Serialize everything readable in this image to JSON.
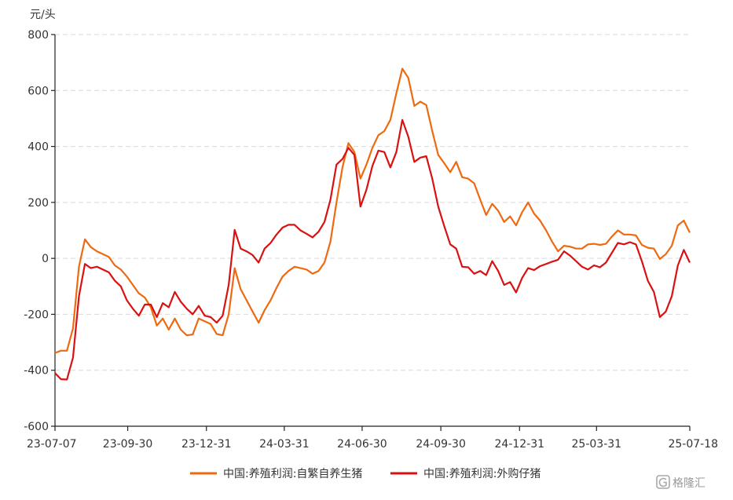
{
  "chart_data": {
    "type": "line",
    "ylabel": "元/头",
    "ylim": [
      -600,
      800
    ],
    "yticks": [
      -600,
      -400,
      -200,
      0,
      200,
      400,
      600,
      800
    ],
    "xlim": [
      "2023-07-07",
      "2025-07-18"
    ],
    "xticks": [
      {
        "date": "2023-07-07",
        "label": "23-07-07"
      },
      {
        "date": "2023-09-30",
        "label": "23-09-30"
      },
      {
        "date": "2023-12-31",
        "label": "23-12-31"
      },
      {
        "date": "2024-03-31",
        "label": "24-03-31"
      },
      {
        "date": "2024-06-30",
        "label": "24-06-30"
      },
      {
        "date": "2024-09-30",
        "label": "24-09-30"
      },
      {
        "date": "2024-12-31",
        "label": "24-12-31"
      },
      {
        "date": "2025-03-31",
        "label": "25-03-31"
      },
      {
        "date": "2025-07-18",
        "label": "25-07-18"
      }
    ],
    "grid": true,
    "legend": "bottom",
    "series": [
      {
        "name": "中国:养殖利润:自繁自养生猪",
        "color": "#ee6a10",
        "points": [
          [
            "2023-07-07",
            -338
          ],
          [
            "2023-07-14",
            -330
          ],
          [
            "2023-07-21",
            -330
          ],
          [
            "2023-07-28",
            -250
          ],
          [
            "2023-08-04",
            -30
          ],
          [
            "2023-08-11",
            68
          ],
          [
            "2023-08-18",
            40
          ],
          [
            "2023-08-25",
            25
          ],
          [
            "2023-09-01",
            15
          ],
          [
            "2023-09-08",
            5
          ],
          [
            "2023-09-15",
            -25
          ],
          [
            "2023-09-22",
            -40
          ],
          [
            "2023-09-29",
            -65
          ],
          [
            "2023-10-06",
            -95
          ],
          [
            "2023-10-13",
            -125
          ],
          [
            "2023-10-20",
            -140
          ],
          [
            "2023-10-27",
            -175
          ],
          [
            "2023-11-03",
            -240
          ],
          [
            "2023-11-10",
            -215
          ],
          [
            "2023-11-17",
            -255
          ],
          [
            "2023-11-24",
            -215
          ],
          [
            "2023-12-01",
            -255
          ],
          [
            "2023-12-08",
            -275
          ],
          [
            "2023-12-15",
            -272
          ],
          [
            "2023-12-22",
            -215
          ],
          [
            "2023-12-29",
            -225
          ],
          [
            "2024-01-05",
            -235
          ],
          [
            "2024-01-12",
            -270
          ],
          [
            "2024-01-19",
            -275
          ],
          [
            "2024-01-26",
            -200
          ],
          [
            "2024-02-02",
            -35
          ],
          [
            "2024-02-09",
            -110
          ],
          [
            "2024-02-16",
            -150
          ],
          [
            "2024-02-23",
            -190
          ],
          [
            "2024-03-01",
            -230
          ],
          [
            "2024-03-08",
            -185
          ],
          [
            "2024-03-15",
            -150
          ],
          [
            "2024-03-22",
            -105
          ],
          [
            "2024-03-29",
            -65
          ],
          [
            "2024-04-05",
            -45
          ],
          [
            "2024-04-12",
            -30
          ],
          [
            "2024-04-19",
            -35
          ],
          [
            "2024-04-26",
            -40
          ],
          [
            "2024-05-03",
            -55
          ],
          [
            "2024-05-10",
            -45
          ],
          [
            "2024-05-17",
            -15
          ],
          [
            "2024-05-24",
            60
          ],
          [
            "2024-05-31",
            200
          ],
          [
            "2024-06-07",
            325
          ],
          [
            "2024-06-14",
            412
          ],
          [
            "2024-06-21",
            380
          ],
          [
            "2024-06-28",
            285
          ],
          [
            "2024-07-05",
            335
          ],
          [
            "2024-07-12",
            395
          ],
          [
            "2024-07-19",
            440
          ],
          [
            "2024-07-26",
            455
          ],
          [
            "2024-08-02",
            495
          ],
          [
            "2024-08-09",
            590
          ],
          [
            "2024-08-16",
            678
          ],
          [
            "2024-08-23",
            645
          ],
          [
            "2024-08-30",
            545
          ],
          [
            "2024-09-06",
            560
          ],
          [
            "2024-09-13",
            548
          ],
          [
            "2024-09-20",
            455
          ],
          [
            "2024-09-27",
            370
          ],
          [
            "2024-10-04",
            340
          ],
          [
            "2024-10-11",
            308
          ],
          [
            "2024-10-18",
            345
          ],
          [
            "2024-10-25",
            290
          ],
          [
            "2024-11-01",
            285
          ],
          [
            "2024-11-08",
            268
          ],
          [
            "2024-11-15",
            210
          ],
          [
            "2024-11-22",
            155
          ],
          [
            "2024-11-29",
            195
          ],
          [
            "2024-12-06",
            170
          ],
          [
            "2024-12-13",
            130
          ],
          [
            "2024-12-20",
            150
          ],
          [
            "2024-12-27",
            118
          ],
          [
            "2025-01-03",
            165
          ],
          [
            "2025-01-10",
            200
          ],
          [
            "2025-01-17",
            160
          ],
          [
            "2025-01-24",
            135
          ],
          [
            "2025-01-31",
            100
          ],
          [
            "2025-02-07",
            60
          ],
          [
            "2025-02-14",
            25
          ],
          [
            "2025-02-21",
            45
          ],
          [
            "2025-02-28",
            42
          ],
          [
            "2025-03-07",
            35
          ],
          [
            "2025-03-14",
            35
          ],
          [
            "2025-03-21",
            50
          ],
          [
            "2025-03-28",
            52
          ],
          [
            "2025-04-04",
            48
          ],
          [
            "2025-04-11",
            52
          ],
          [
            "2025-04-18",
            78
          ],
          [
            "2025-04-25",
            100
          ],
          [
            "2025-05-02",
            85
          ],
          [
            "2025-05-09",
            85
          ],
          [
            "2025-05-16",
            82
          ],
          [
            "2025-05-23",
            48
          ],
          [
            "2025-05-30",
            38
          ],
          [
            "2025-06-06",
            35
          ],
          [
            "2025-06-13",
            -2
          ],
          [
            "2025-06-20",
            15
          ],
          [
            "2025-06-27",
            45
          ],
          [
            "2025-07-04",
            118
          ],
          [
            "2025-07-11",
            135
          ],
          [
            "2025-07-18",
            92
          ]
        ]
      },
      {
        "name": "中国:养殖利润:外购仔猪",
        "color": "#d81212",
        "points": [
          [
            "2023-07-07",
            -410
          ],
          [
            "2023-07-14",
            -432
          ],
          [
            "2023-07-21",
            -433
          ],
          [
            "2023-07-28",
            -355
          ],
          [
            "2023-08-04",
            -135
          ],
          [
            "2023-08-11",
            -20
          ],
          [
            "2023-08-18",
            -35
          ],
          [
            "2023-08-25",
            -30
          ],
          [
            "2023-09-01",
            -40
          ],
          [
            "2023-09-08",
            -50
          ],
          [
            "2023-09-15",
            -80
          ],
          [
            "2023-09-22",
            -100
          ],
          [
            "2023-09-29",
            -150
          ],
          [
            "2023-10-06",
            -180
          ],
          [
            "2023-10-13",
            -205
          ],
          [
            "2023-10-20",
            -165
          ],
          [
            "2023-10-27",
            -165
          ],
          [
            "2023-11-03",
            -210
          ],
          [
            "2023-11-10",
            -160
          ],
          [
            "2023-11-17",
            -175
          ],
          [
            "2023-11-24",
            -120
          ],
          [
            "2023-12-01",
            -155
          ],
          [
            "2023-12-08",
            -180
          ],
          [
            "2023-12-15",
            -200
          ],
          [
            "2023-12-22",
            -170
          ],
          [
            "2023-12-29",
            -205
          ],
          [
            "2024-01-05",
            -210
          ],
          [
            "2024-01-12",
            -230
          ],
          [
            "2024-01-19",
            -205
          ],
          [
            "2024-01-26",
            -95
          ],
          [
            "2024-02-02",
            102
          ],
          [
            "2024-02-09",
            35
          ],
          [
            "2024-02-16",
            25
          ],
          [
            "2024-02-23",
            12
          ],
          [
            "2024-03-01",
            -15
          ],
          [
            "2024-03-08",
            35
          ],
          [
            "2024-03-15",
            55
          ],
          [
            "2024-03-22",
            85
          ],
          [
            "2024-03-29",
            110
          ],
          [
            "2024-04-05",
            120
          ],
          [
            "2024-04-12",
            120
          ],
          [
            "2024-04-19",
            100
          ],
          [
            "2024-04-26",
            88
          ],
          [
            "2024-05-03",
            75
          ],
          [
            "2024-05-10",
            95
          ],
          [
            "2024-05-17",
            130
          ],
          [
            "2024-05-24",
            210
          ],
          [
            "2024-05-31",
            335
          ],
          [
            "2024-06-07",
            355
          ],
          [
            "2024-06-14",
            395
          ],
          [
            "2024-06-21",
            370
          ],
          [
            "2024-06-28",
            185
          ],
          [
            "2024-07-05",
            245
          ],
          [
            "2024-07-12",
            330
          ],
          [
            "2024-07-19",
            385
          ],
          [
            "2024-07-26",
            380
          ],
          [
            "2024-08-02",
            325
          ],
          [
            "2024-08-09",
            380
          ],
          [
            "2024-08-16",
            495
          ],
          [
            "2024-08-23",
            435
          ],
          [
            "2024-08-30",
            345
          ],
          [
            "2024-09-06",
            360
          ],
          [
            "2024-09-13",
            365
          ],
          [
            "2024-09-20",
            285
          ],
          [
            "2024-09-27",
            185
          ],
          [
            "2024-10-04",
            115
          ],
          [
            "2024-10-11",
            50
          ],
          [
            "2024-10-18",
            35
          ],
          [
            "2024-10-25",
            -30
          ],
          [
            "2024-11-01",
            -32
          ],
          [
            "2024-11-08",
            -55
          ],
          [
            "2024-11-15",
            -45
          ],
          [
            "2024-11-22",
            -60
          ],
          [
            "2024-11-29",
            -10
          ],
          [
            "2024-12-06",
            -45
          ],
          [
            "2024-12-13",
            -95
          ],
          [
            "2024-12-20",
            -85
          ],
          [
            "2024-12-27",
            -122
          ],
          [
            "2025-01-03",
            -70
          ],
          [
            "2025-01-10",
            -35
          ],
          [
            "2025-01-17",
            -42
          ],
          [
            "2025-01-24",
            -28
          ],
          [
            "2025-01-31",
            -20
          ],
          [
            "2025-02-07",
            -12
          ],
          [
            "2025-02-14",
            -5
          ],
          [
            "2025-02-21",
            25
          ],
          [
            "2025-02-28",
            10
          ],
          [
            "2025-03-07",
            -10
          ],
          [
            "2025-03-14",
            -30
          ],
          [
            "2025-03-21",
            -40
          ],
          [
            "2025-03-28",
            -25
          ],
          [
            "2025-04-04",
            -32
          ],
          [
            "2025-04-11",
            -15
          ],
          [
            "2025-04-18",
            20
          ],
          [
            "2025-04-25",
            55
          ],
          [
            "2025-05-02",
            50
          ],
          [
            "2025-05-09",
            58
          ],
          [
            "2025-05-16",
            50
          ],
          [
            "2025-05-23",
            -10
          ],
          [
            "2025-05-30",
            -80
          ],
          [
            "2025-06-06",
            -120
          ],
          [
            "2025-06-13",
            -210
          ],
          [
            "2025-06-20",
            -190
          ],
          [
            "2025-06-27",
            -135
          ],
          [
            "2025-07-04",
            -25
          ],
          [
            "2025-07-11",
            30
          ],
          [
            "2025-07-18",
            -15
          ]
        ]
      }
    ]
  },
  "watermark": {
    "logo_text": "格隆汇"
  }
}
